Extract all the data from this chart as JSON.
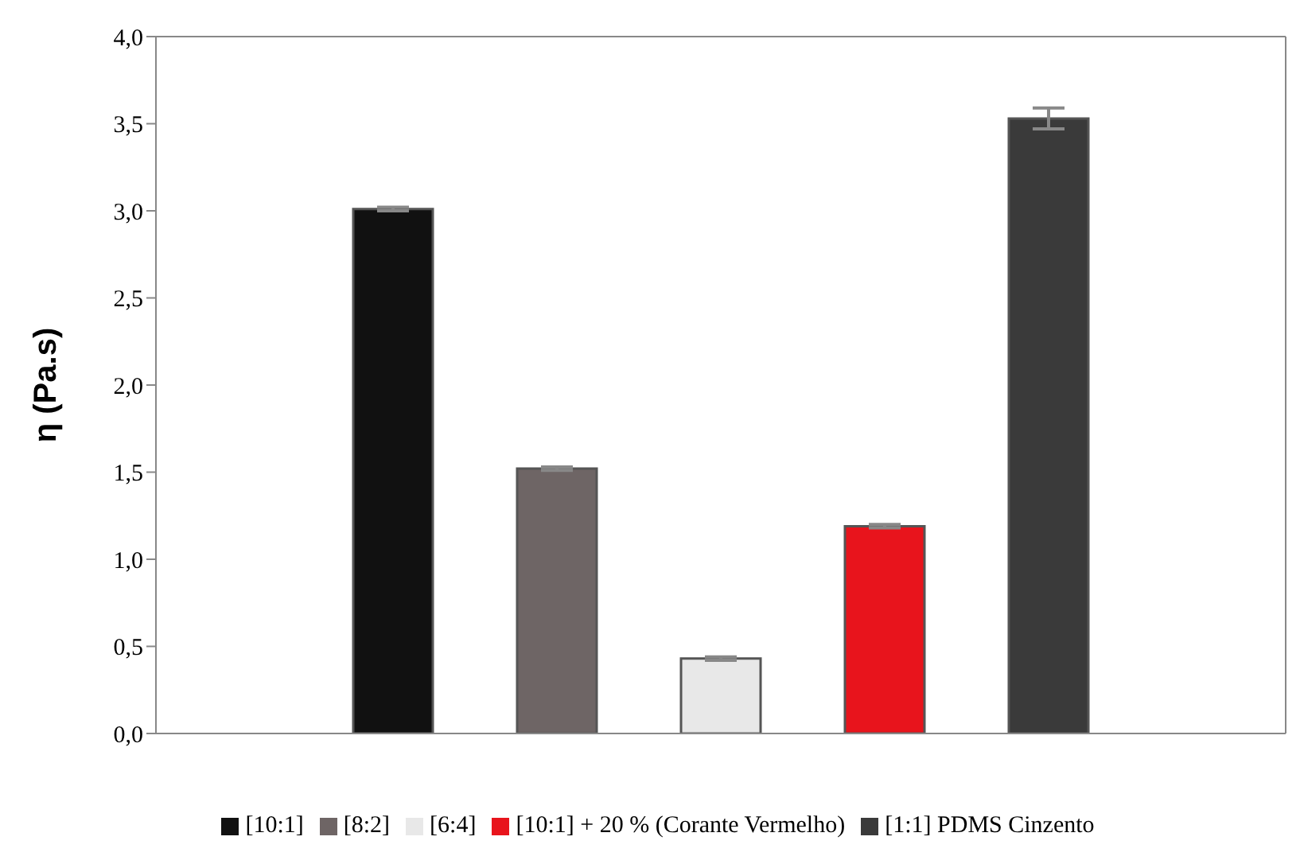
{
  "chart_data": {
    "type": "bar",
    "ylabel": "η (Pa.s)",
    "categories": [
      null
    ],
    "series": [
      {
        "name": "[10:1]",
        "color": "#111111",
        "values": [
          3.01
        ],
        "errors": [
          0.01
        ]
      },
      {
        "name": "[8:2]",
        "color": "#6e6565",
        "values": [
          1.52
        ],
        "errors": [
          0.01
        ]
      },
      {
        "name": "[6:4]",
        "color": "#e8e8e8",
        "values": [
          0.43
        ],
        "errors": [
          0.01
        ]
      },
      {
        "name": "[10:1] + 20 % (Corante Vermelho)",
        "color": "#e8141c",
        "values": [
          1.19
        ],
        "errors": [
          0.01
        ]
      },
      {
        "name": "[1:1] PDMS Cinzento",
        "color": "#3a3a3a",
        "values": [
          3.53
        ],
        "errors": [
          0.06
        ]
      }
    ],
    "ylim": [
      0,
      4
    ],
    "yticks": [
      {
        "value": 0,
        "label": "0,0"
      },
      {
        "value": 0.5,
        "label": "0,5"
      },
      {
        "value": 1,
        "label": "1,0"
      },
      {
        "value": 1.5,
        "label": "1,5"
      },
      {
        "value": 2,
        "label": "2,0"
      },
      {
        "value": 2.5,
        "label": "2,5"
      },
      {
        "value": 3,
        "label": "3,0"
      },
      {
        "value": 3.5,
        "label": "3,5"
      },
      {
        "value": 4,
        "label": "4,0"
      }
    ],
    "grid": false,
    "legend": "bottom"
  }
}
